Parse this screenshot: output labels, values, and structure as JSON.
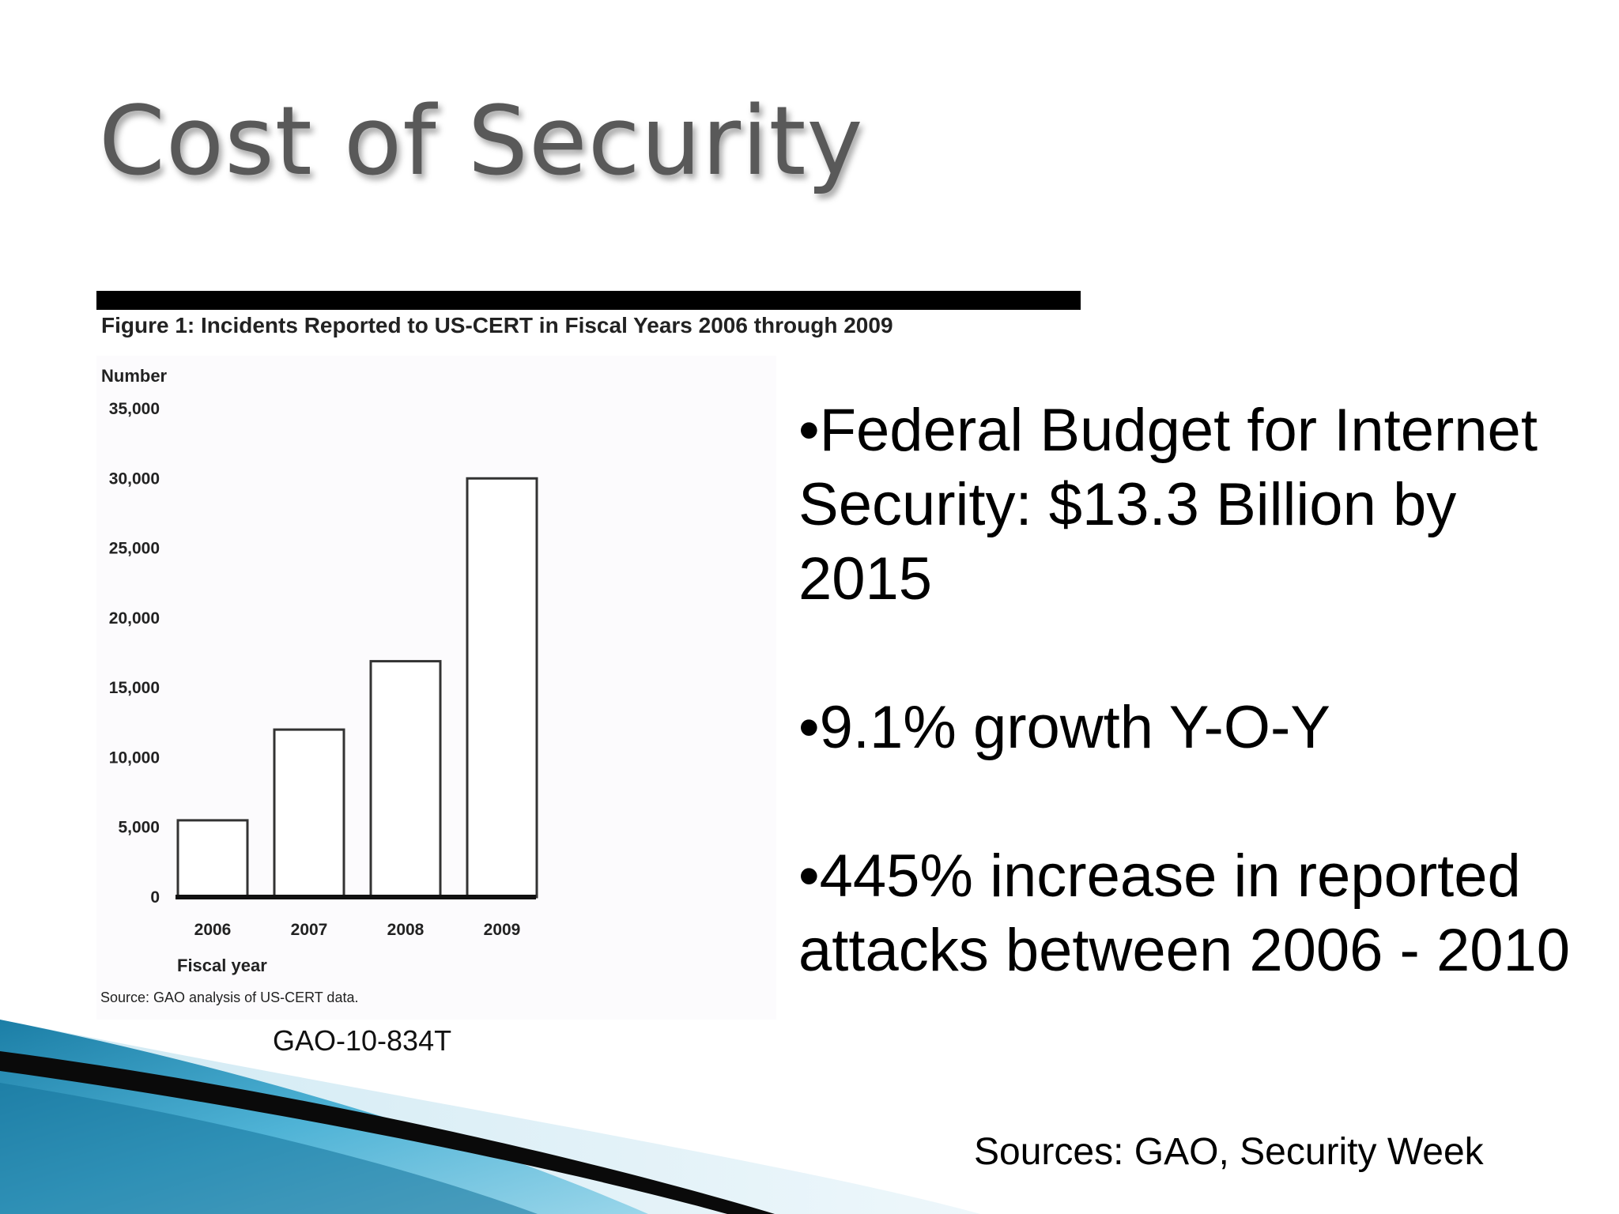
{
  "slide": {
    "title": "Cost of Security",
    "bullets": [
      "•Federal Budget for Internet Security: $13.3 Billion by 2015",
      "•9.1% growth Y-O-Y",
      "•445% increase in reported attacks between 2006 - 2010"
    ],
    "sources": "Sources: GAO, Security Week",
    "figure_ref": "GAO-10-834T"
  },
  "chart_data": {
    "type": "bar",
    "title": "Figure 1: Incidents Reported to US-CERT in Fiscal Years 2006 through 2009",
    "categories": [
      "2006",
      "2007",
      "2008",
      "2009"
    ],
    "values": [
      5500,
      12000,
      16900,
      30000
    ],
    "xlabel": "Fiscal year",
    "ylabel": "Number",
    "ylim": [
      0,
      35000
    ],
    "yticks": [
      0,
      5000,
      10000,
      15000,
      20000,
      25000,
      30000,
      35000
    ],
    "ytick_labels": [
      "0",
      "5,000",
      "10,000",
      "15,000",
      "20,000",
      "25,000",
      "30,000",
      "35,000"
    ],
    "source_note": "Source: GAO analysis of US-CERT data.",
    "grid": false,
    "bar_color": "#ffffff",
    "bar_edge_color": "#333333"
  }
}
